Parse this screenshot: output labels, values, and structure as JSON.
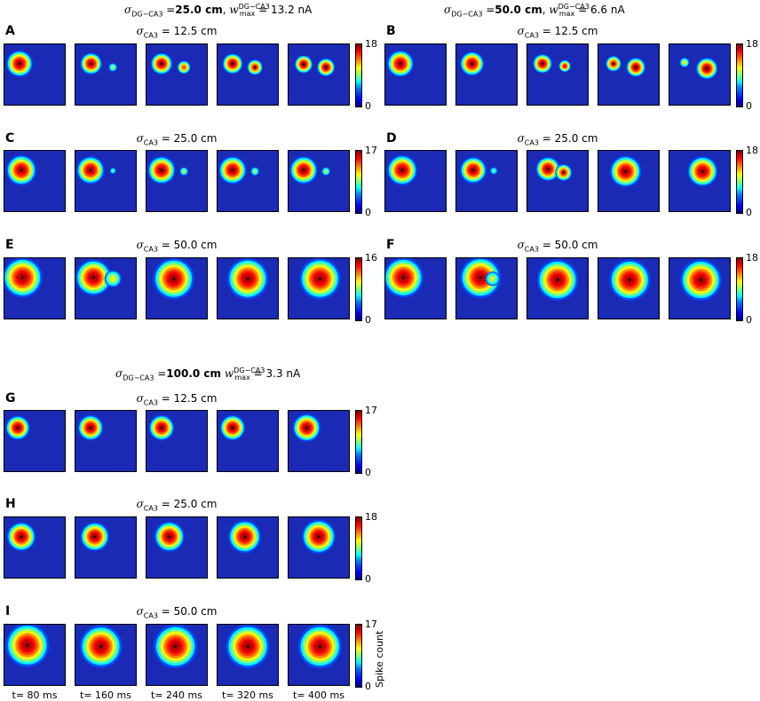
{
  "headers": [
    {
      "sigma": "σ",
      "sigma_sub": "DG−CA3",
      "eq": " =",
      "val": "25.0 cm",
      "sep": ",",
      "w": "w",
      "w_sup": "DG−CA3",
      "w_sub": "max",
      "w_eq": " = 13.2 nA"
    },
    {
      "sigma": "σ",
      "sigma_sub": "DG−CA3",
      "eq": " =",
      "val": "50.0 cm",
      "sep": ",",
      "w": "w",
      "w_sup": "DG−CA3",
      "w_sub": "max",
      "w_eq": " = 6.6 nA"
    },
    {
      "sigma": "σ",
      "sigma_sub": "DG−CA3",
      "eq": " =",
      "val": "100.0 cm",
      "sep": "",
      "w": "w",
      "w_sup": "DG−CA3",
      "w_sub": "max",
      "w_eq": " = 3.3 nA"
    }
  ],
  "panel_title_prefix": {
    "sym": "σ",
    "sub": "CA3"
  },
  "time_labels": [
    "t= 80 ms",
    "t= 160 ms",
    "t= 240 ms",
    "t= 320 ms",
    "t= 400 ms"
  ],
  "colorbar_title": "Spike count",
  "colors": {
    "background": "#1a2ab4",
    "colormap": "jet"
  },
  "chart_data": [
    {
      "type": "heatmap",
      "panel": "A",
      "title": "σCA3 = 12.5 cm",
      "title_value": " = 12.5 cm",
      "cbar_min": "0",
      "cbar_max": "18",
      "frames": [
        {
          "blobs": [
            [
              0.25,
              0.32,
              0.22,
              1.0
            ]
          ]
        },
        {
          "blobs": [
            [
              0.26,
              0.32,
              0.18,
              1.0
            ],
            [
              0.62,
              0.38,
              0.07,
              0.45
            ]
          ]
        },
        {
          "blobs": [
            [
              0.25,
              0.32,
              0.18,
              1.0
            ],
            [
              0.62,
              0.38,
              0.11,
              0.8
            ]
          ]
        },
        {
          "blobs": [
            [
              0.25,
              0.32,
              0.17,
              1.0
            ],
            [
              0.62,
              0.38,
              0.13,
              0.9
            ]
          ]
        },
        {
          "blobs": [
            [
              0.25,
              0.33,
              0.15,
              1.0
            ],
            [
              0.62,
              0.38,
              0.15,
              1.0
            ]
          ]
        }
      ]
    },
    {
      "type": "heatmap",
      "panel": "B",
      "title": "σCA3 = 12.5 cm",
      "title_value": " = 12.5 cm",
      "cbar_min": "0",
      "cbar_max": "18",
      "frames": [
        {
          "blobs": [
            [
              0.25,
              0.32,
              0.22,
              1.0
            ]
          ]
        },
        {
          "blobs": [
            [
              0.26,
              0.32,
              0.2,
              1.0
            ]
          ]
        },
        {
          "blobs": [
            [
              0.25,
              0.32,
              0.16,
              1.0
            ],
            [
              0.62,
              0.36,
              0.1,
              0.9
            ]
          ]
        },
        {
          "blobs": [
            [
              0.25,
              0.32,
              0.13,
              0.9
            ],
            [
              0.62,
              0.38,
              0.16,
              1.0
            ]
          ]
        },
        {
          "blobs": [
            [
              0.25,
              0.3,
              0.08,
              0.55
            ],
            [
              0.62,
              0.4,
              0.18,
              1.0
            ]
          ]
        }
      ]
    },
    {
      "type": "heatmap",
      "panel": "C",
      "title": "σCA3 = 25.0 cm",
      "title_value": " = 25.0 cm",
      "cbar_min": "0",
      "cbar_max": "17",
      "frames": [
        {
          "blobs": [
            [
              0.28,
              0.32,
              0.25,
              1.0
            ]
          ]
        },
        {
          "blobs": [
            [
              0.25,
              0.32,
              0.23,
              1.0
            ],
            [
              0.62,
              0.33,
              0.05,
              0.35
            ]
          ]
        },
        {
          "blobs": [
            [
              0.25,
              0.32,
              0.23,
              1.0
            ],
            [
              0.62,
              0.34,
              0.07,
              0.45
            ]
          ]
        },
        {
          "blobs": [
            [
              0.25,
              0.32,
              0.23,
              1.0
            ],
            [
              0.62,
              0.34,
              0.07,
              0.45
            ]
          ]
        },
        {
          "blobs": [
            [
              0.25,
              0.32,
              0.23,
              1.0
            ],
            [
              0.62,
              0.34,
              0.07,
              0.45
            ]
          ]
        }
      ]
    },
    {
      "type": "heatmap",
      "panel": "D",
      "title": "σCA3 = 25.0 cm",
      "title_value": " = 25.0 cm",
      "cbar_min": "0",
      "cbar_max": "18",
      "frames": [
        {
          "blobs": [
            [
              0.28,
              0.32,
              0.25,
              1.0
            ]
          ]
        },
        {
          "blobs": [
            [
              0.28,
              0.32,
              0.22,
              1.0
            ],
            [
              0.62,
              0.33,
              0.06,
              0.35
            ]
          ]
        },
        {
          "blobs": [
            [
              0.34,
              0.3,
              0.2,
              1.0
            ],
            [
              0.6,
              0.36,
              0.14,
              0.9
            ]
          ]
        },
        {
          "blobs": [
            [
              0.45,
              0.34,
              0.26,
              1.0
            ]
          ]
        },
        {
          "blobs": [
            [
              0.55,
              0.34,
              0.25,
              1.0
            ]
          ]
        }
      ]
    },
    {
      "type": "heatmap",
      "panel": "E",
      "title": "σCA3 = 50.0 cm",
      "title_value": " = 50.0 cm",
      "cbar_min": "0",
      "cbar_max": "16",
      "frames": [
        {
          "blobs": [
            [
              0.3,
              0.32,
              0.33,
              1.0
            ]
          ]
        },
        {
          "blobs": [
            [
              0.3,
              0.32,
              0.3,
              1.0
            ],
            [
              0.62,
              0.34,
              0.14,
              0.55
            ]
          ]
        },
        {
          "blobs": [
            [
              0.45,
              0.34,
              0.34,
              1.0
            ]
          ]
        },
        {
          "blobs": [
            [
              0.5,
              0.34,
              0.34,
              1.0
            ]
          ]
        },
        {
          "blobs": [
            [
              0.52,
              0.34,
              0.34,
              1.0
            ]
          ]
        }
      ]
    },
    {
      "type": "heatmap",
      "panel": "F",
      "title": "σCA3 = 50.0 cm",
      "title_value": " = 50.0 cm",
      "cbar_min": "0",
      "cbar_max": "18",
      "frames": [
        {
          "blobs": [
            [
              0.3,
              0.32,
              0.33,
              1.0
            ]
          ]
        },
        {
          "blobs": [
            [
              0.4,
              0.32,
              0.34,
              1.0
            ],
            [
              0.6,
              0.34,
              0.12,
              0.5
            ]
          ]
        },
        {
          "blobs": [
            [
              0.5,
              0.36,
              0.34,
              1.0
            ]
          ]
        },
        {
          "blobs": [
            [
              0.52,
              0.36,
              0.34,
              1.0
            ]
          ]
        },
        {
          "blobs": [
            [
              0.52,
              0.36,
              0.34,
              1.0
            ]
          ]
        }
      ]
    },
    {
      "type": "heatmap",
      "panel": "G",
      "title": "σCA3 = 12.5 cm",
      "title_value": " = 12.5 cm",
      "cbar_min": "0",
      "cbar_max": "17",
      "frames": [
        {
          "blobs": [
            [
              0.22,
              0.28,
              0.2,
              1.0
            ]
          ]
        },
        {
          "blobs": [
            [
              0.25,
              0.28,
              0.21,
              1.0
            ]
          ]
        },
        {
          "blobs": [
            [
              0.25,
              0.28,
              0.21,
              1.0
            ]
          ]
        },
        {
          "blobs": [
            [
              0.25,
              0.28,
              0.21,
              1.0
            ]
          ]
        },
        {
          "blobs": [
            [
              0.3,
              0.28,
              0.23,
              1.0
            ]
          ]
        }
      ]
    },
    {
      "type": "heatmap",
      "panel": "H",
      "title": "σCA3 = 25.0 cm",
      "title_value": " = 25.0 cm",
      "cbar_min": "0",
      "cbar_max": "18",
      "frames": [
        {
          "blobs": [
            [
              0.28,
              0.32,
              0.24,
              1.0
            ]
          ]
        },
        {
          "blobs": [
            [
              0.32,
              0.32,
              0.24,
              1.0
            ]
          ]
        },
        {
          "blobs": [
            [
              0.38,
              0.32,
              0.25,
              1.0
            ]
          ]
        },
        {
          "blobs": [
            [
              0.45,
              0.32,
              0.27,
              1.0
            ]
          ]
        },
        {
          "blobs": [
            [
              0.5,
              0.32,
              0.28,
              1.0
            ]
          ]
        }
      ]
    },
    {
      "type": "heatmap",
      "panel": "I",
      "title": "σCA3 = 50.0 cm",
      "title_value": " = 50.0 cm",
      "cbar_min": "0",
      "cbar_max": "17",
      "frames": [
        {
          "blobs": [
            [
              0.38,
              0.34,
              0.36,
              1.0
            ]
          ]
        },
        {
          "blobs": [
            [
              0.42,
              0.36,
              0.35,
              1.0
            ]
          ]
        },
        {
          "blobs": [
            [
              0.48,
              0.36,
              0.36,
              1.0
            ]
          ]
        },
        {
          "blobs": [
            [
              0.5,
              0.36,
              0.36,
              1.0
            ]
          ]
        },
        {
          "blobs": [
            [
              0.52,
              0.36,
              0.36,
              1.0
            ]
          ]
        }
      ]
    }
  ]
}
